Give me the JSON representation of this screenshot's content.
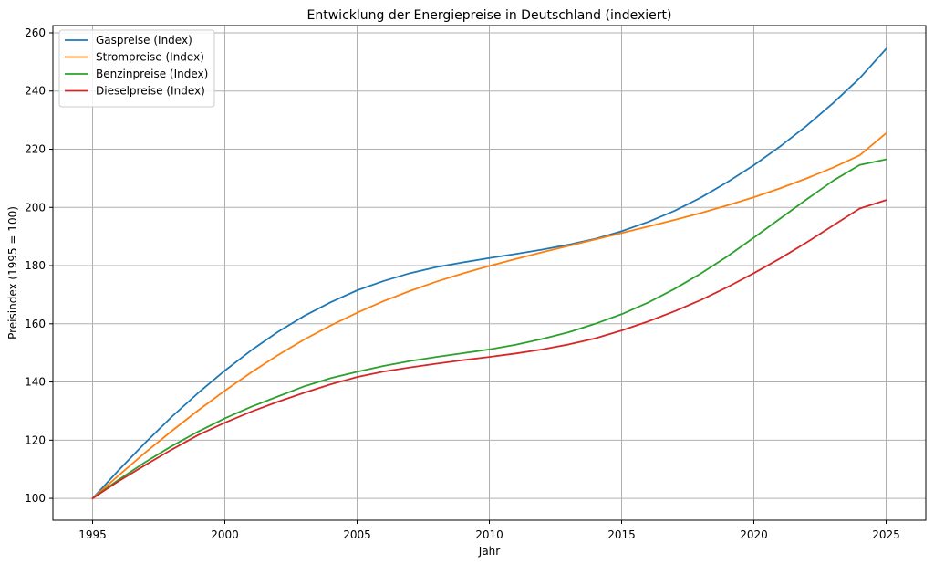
{
  "chart_data": {
    "type": "line",
    "title": "Entwicklung der Energiepreise in Deutschland (indexiert)",
    "xlabel": "Jahr",
    "ylabel": "Preisindex (1995 = 100)",
    "xlim": [
      1993.5,
      2026.5
    ],
    "ylim": [
      92.5,
      262.5
    ],
    "xticks": [
      1995,
      2000,
      2005,
      2010,
      2015,
      2020,
      2025
    ],
    "yticks": [
      100,
      120,
      140,
      160,
      180,
      200,
      220,
      240,
      260
    ],
    "grid": true,
    "legend_position": "top-left",
    "x": [
      1995,
      1996,
      1997,
      1998,
      1999,
      2000,
      2001,
      2002,
      2003,
      2004,
      2005,
      2006,
      2007,
      2008,
      2009,
      2010,
      2011,
      2012,
      2013,
      2014,
      2015,
      2016,
      2017,
      2018,
      2019,
      2020,
      2021,
      2022,
      2023,
      2024,
      2025
    ],
    "series": [
      {
        "name": "Gaspreise (Index)",
        "color": "#1f77b4",
        "values": [
          100,
          109.8,
          119.2,
          128.1,
          136.3,
          143.9,
          150.9,
          157.2,
          162.7,
          167.4,
          171.5,
          174.7,
          177.4,
          179.5,
          181.1,
          182.6,
          184.0,
          185.5,
          187.2,
          189.2,
          191.8,
          195.0,
          198.8,
          203.4,
          208.7,
          214.5,
          221.0,
          228.1,
          235.9,
          244.4,
          254.5
        ]
      },
      {
        "name": "Strompreise (Index)",
        "color": "#ff7f0e",
        "values": [
          100,
          108.0,
          115.8,
          123.2,
          130.3,
          137.0,
          143.3,
          149.2,
          154.6,
          159.4,
          163.8,
          167.8,
          171.3,
          174.5,
          177.3,
          179.9,
          182.3,
          184.6,
          186.8,
          189.0,
          191.2,
          193.4,
          195.7,
          198.1,
          200.7,
          203.5,
          206.6,
          210.0,
          213.7,
          217.9,
          225.5
        ]
      },
      {
        "name": "Benzinpreise (Index)",
        "color": "#2ca02c",
        "values": [
          100,
          106.5,
          112.5,
          118.0,
          123.0,
          127.5,
          131.5,
          135.0,
          138.5,
          141.3,
          143.5,
          145.5,
          147.2,
          148.6,
          149.9,
          151.2,
          152.8,
          154.8,
          157.1,
          160.0,
          163.3,
          167.3,
          172.0,
          177.3,
          183.2,
          189.6,
          196.2,
          202.8,
          209.2,
          214.6,
          216.5
        ]
      },
      {
        "name": "Dieselpreise (Index)",
        "color": "#d62728",
        "values": [
          100,
          106.0,
          111.5,
          116.8,
          121.8,
          126.0,
          129.8,
          133.2,
          136.3,
          139.2,
          141.7,
          143.6,
          145.0,
          146.3,
          147.5,
          148.6,
          149.8,
          151.2,
          152.9,
          155.0,
          157.7,
          160.8,
          164.3,
          168.2,
          172.6,
          177.4,
          182.5,
          188.0,
          193.8,
          199.6,
          202.5
        ]
      }
    ]
  }
}
